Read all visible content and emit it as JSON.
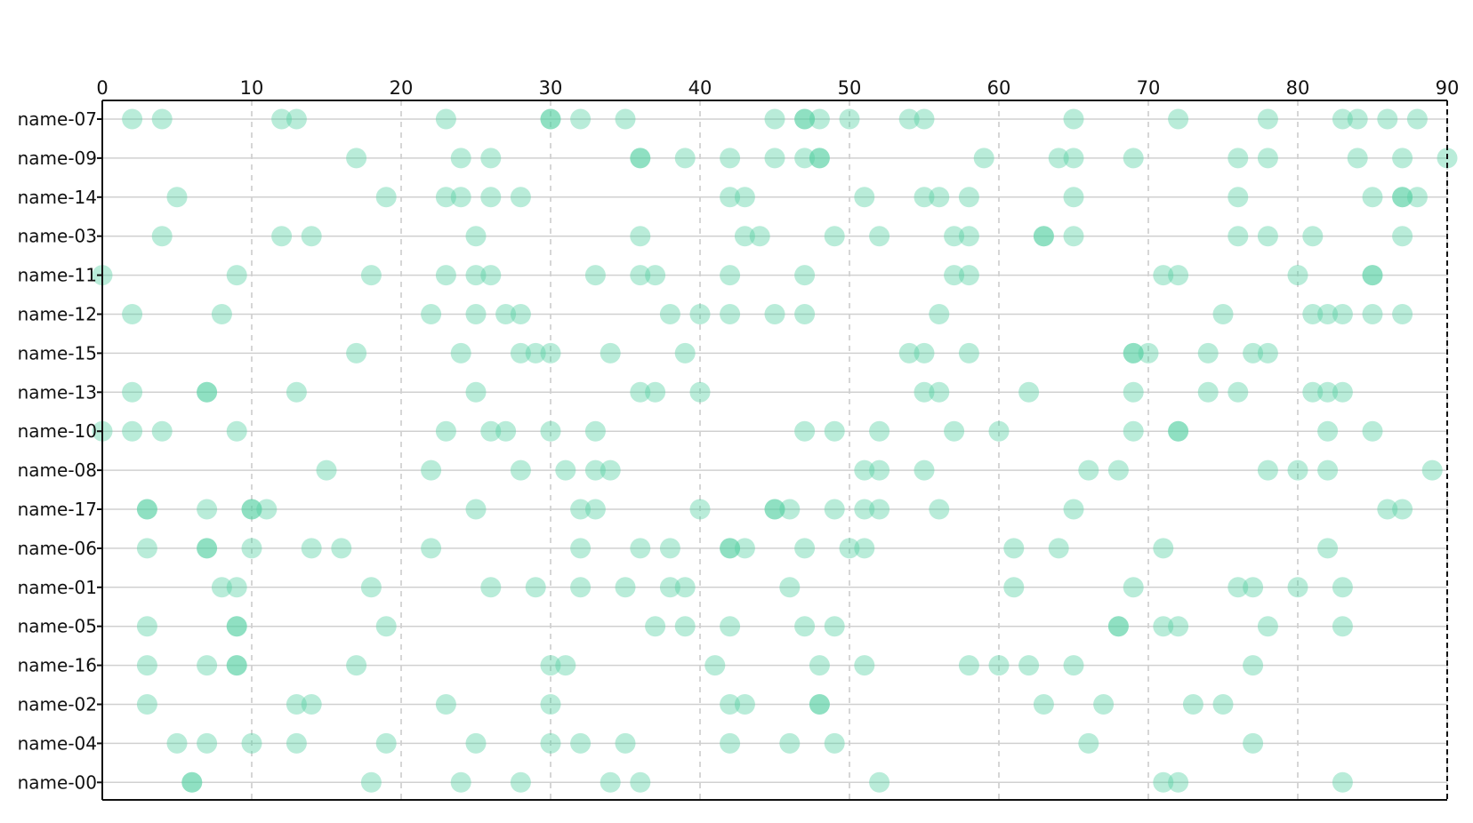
{
  "chart_data": {
    "type": "scatter",
    "title": "",
    "xlabel": "",
    "ylabel": "",
    "xlim": [
      0,
      90
    ],
    "x_ticks": [
      0,
      10,
      20,
      30,
      40,
      50,
      60,
      70,
      80,
      90
    ],
    "x_axis_position": "top",
    "grid": "vertical dashed at x ticks, horizontal solid at each row",
    "legend": "none",
    "colors": {
      "point": "#4fd0a0",
      "point_opacity": 0.4,
      "grid_vertical": "#c8c8c8",
      "row_line": "#d0d0d0",
      "axis": "#111111"
    },
    "categories": [
      "name-07",
      "name-09",
      "name-14",
      "name-03",
      "name-11",
      "name-12",
      "name-15",
      "name-13",
      "name-10",
      "name-08",
      "name-17",
      "name-06",
      "name-01",
      "name-05",
      "name-16",
      "name-02",
      "name-04",
      "name-00"
    ],
    "rows": [
      {
        "name": "name-07",
        "x": [
          2,
          4,
          12,
          13,
          23,
          30,
          30,
          32,
          35,
          45,
          47,
          47,
          48,
          50,
          54,
          55,
          65,
          72,
          78,
          83,
          84,
          86,
          88
        ]
      },
      {
        "name": "name-09",
        "x": [
          17,
          24,
          26,
          36,
          36,
          39,
          42,
          45,
          47,
          48,
          48,
          59,
          64,
          65,
          69,
          76,
          78,
          84,
          87,
          90
        ]
      },
      {
        "name": "name-14",
        "x": [
          5,
          19,
          23,
          24,
          26,
          28,
          42,
          43,
          51,
          55,
          56,
          58,
          65,
          76,
          85,
          87,
          87,
          88
        ]
      },
      {
        "name": "name-03",
        "x": [
          4,
          12,
          14,
          25,
          36,
          43,
          44,
          49,
          52,
          57,
          58,
          63,
          63,
          65,
          76,
          78,
          81,
          87
        ]
      },
      {
        "name": "name-11",
        "x": [
          0,
          9,
          18,
          23,
          25,
          26,
          33,
          36,
          37,
          42,
          47,
          57,
          58,
          71,
          72,
          80,
          85,
          85
        ]
      },
      {
        "name": "name-12",
        "x": [
          2,
          8,
          22,
          25,
          27,
          28,
          38,
          40,
          42,
          45,
          47,
          56,
          75,
          81,
          82,
          83,
          85,
          87
        ]
      },
      {
        "name": "name-15",
        "x": [
          17,
          24,
          28,
          29,
          30,
          34,
          39,
          54,
          55,
          58,
          69,
          69,
          70,
          74,
          77,
          78
        ]
      },
      {
        "name": "name-13",
        "x": [
          2,
          7,
          7,
          13,
          25,
          36,
          37,
          40,
          55,
          56,
          62,
          69,
          74,
          76,
          81,
          82,
          83
        ]
      },
      {
        "name": "name-10",
        "x": [
          0,
          2,
          4,
          9,
          23,
          26,
          27,
          30,
          33,
          47,
          49,
          52,
          57,
          60,
          69,
          72,
          72,
          82,
          85
        ]
      },
      {
        "name": "name-08",
        "x": [
          15,
          22,
          28,
          31,
          33,
          34,
          51,
          52,
          55,
          66,
          68,
          78,
          80,
          82,
          89
        ]
      },
      {
        "name": "name-17",
        "x": [
          3,
          3,
          7,
          10,
          10,
          11,
          25,
          32,
          33,
          40,
          45,
          45,
          46,
          49,
          51,
          52,
          56,
          65,
          86,
          87
        ]
      },
      {
        "name": "name-06",
        "x": [
          3,
          7,
          7,
          10,
          14,
          16,
          22,
          32,
          36,
          38,
          42,
          42,
          43,
          47,
          50,
          51,
          61,
          64,
          71,
          82
        ]
      },
      {
        "name": "name-01",
        "x": [
          8,
          9,
          18,
          26,
          29,
          32,
          35,
          38,
          39,
          46,
          61,
          69,
          76,
          77,
          80,
          83
        ]
      },
      {
        "name": "name-05",
        "x": [
          3,
          9,
          9,
          19,
          37,
          39,
          42,
          47,
          49,
          68,
          68,
          71,
          72,
          78,
          83
        ]
      },
      {
        "name": "name-16",
        "x": [
          3,
          7,
          9,
          9,
          17,
          30,
          31,
          41,
          48,
          51,
          58,
          60,
          62,
          65,
          77
        ]
      },
      {
        "name": "name-02",
        "x": [
          3,
          13,
          14,
          23,
          30,
          42,
          43,
          48,
          48,
          63,
          67,
          73,
          75
        ]
      },
      {
        "name": "name-04",
        "x": [
          5,
          7,
          10,
          13,
          19,
          25,
          30,
          32,
          35,
          42,
          46,
          49,
          66,
          77
        ]
      },
      {
        "name": "name-00",
        "x": [
          6,
          6,
          18,
          24,
          28,
          34,
          36,
          52,
          71,
          72,
          83
        ]
      }
    ]
  }
}
